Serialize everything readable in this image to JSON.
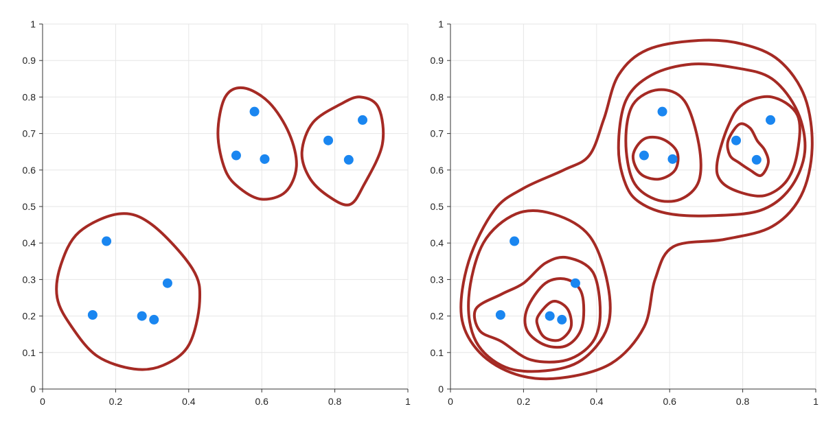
{
  "chart_data": [
    {
      "type": "scatter",
      "title": "",
      "xlabel": "",
      "ylabel": "",
      "xlim": [
        0,
        1
      ],
      "ylim": [
        0,
        1
      ],
      "grid": true,
      "xticks": [
        "0",
        "0.2",
        "0.4",
        "0.6",
        "0.8",
        "1"
      ],
      "yticks": [
        "0",
        "0.1",
        "0.2",
        "0.3",
        "0.4",
        "0.5",
        "0.6",
        "0.7",
        "0.8",
        "0.9",
        "1"
      ],
      "point_color": "#1a86f0",
      "contour_color": "#a52a24",
      "points": [
        {
          "x": 0.175,
          "y": 0.405
        },
        {
          "x": 0.137,
          "y": 0.203
        },
        {
          "x": 0.272,
          "y": 0.2
        },
        {
          "x": 0.305,
          "y": 0.19
        },
        {
          "x": 0.342,
          "y": 0.29
        },
        {
          "x": 0.58,
          "y": 0.76
        },
        {
          "x": 0.53,
          "y": 0.64
        },
        {
          "x": 0.608,
          "y": 0.63
        },
        {
          "x": 0.782,
          "y": 0.681
        },
        {
          "x": 0.838,
          "y": 0.628
        },
        {
          "x": 0.876,
          "y": 0.737
        }
      ],
      "contours": [
        [
          [
            0.1,
            0.43
          ],
          [
            0.21,
            0.48
          ],
          [
            0.3,
            0.45
          ],
          [
            0.41,
            0.33
          ],
          [
            0.43,
            0.24
          ],
          [
            0.4,
            0.12
          ],
          [
            0.33,
            0.065
          ],
          [
            0.25,
            0.055
          ],
          [
            0.15,
            0.09
          ],
          [
            0.08,
            0.17
          ],
          [
            0.04,
            0.25
          ],
          [
            0.05,
            0.34
          ]
        ],
        [
          [
            0.55,
            0.825
          ],
          [
            0.62,
            0.785
          ],
          [
            0.675,
            0.7
          ],
          [
            0.695,
            0.61
          ],
          [
            0.665,
            0.54
          ],
          [
            0.6,
            0.52
          ],
          [
            0.54,
            0.55
          ],
          [
            0.5,
            0.6
          ],
          [
            0.48,
            0.7
          ],
          [
            0.5,
            0.8
          ]
        ],
        [
          [
            0.74,
            0.73
          ],
          [
            0.815,
            0.78
          ],
          [
            0.87,
            0.8
          ],
          [
            0.92,
            0.77
          ],
          [
            0.93,
            0.67
          ],
          [
            0.88,
            0.56
          ],
          [
            0.84,
            0.505
          ],
          [
            0.78,
            0.53
          ],
          [
            0.73,
            0.58
          ],
          [
            0.71,
            0.65
          ]
        ]
      ]
    },
    {
      "type": "scatter",
      "title": "",
      "xlabel": "",
      "ylabel": "",
      "xlim": [
        0,
        1
      ],
      "ylim": [
        0,
        1
      ],
      "grid": true,
      "xticks": [
        "0",
        "0.2",
        "0.4",
        "0.6",
        "0.8",
        "1"
      ],
      "yticks": [
        "0",
        "0.1",
        "0.2",
        "0.3",
        "0.4",
        "0.5",
        "0.6",
        "0.7",
        "0.8",
        "0.9",
        "1"
      ],
      "point_color": "#1a86f0",
      "contour_color": "#a52a24",
      "points": [
        {
          "x": 0.175,
          "y": 0.405
        },
        {
          "x": 0.137,
          "y": 0.203
        },
        {
          "x": 0.272,
          "y": 0.2
        },
        {
          "x": 0.305,
          "y": 0.19
        },
        {
          "x": 0.342,
          "y": 0.29
        },
        {
          "x": 0.58,
          "y": 0.76
        },
        {
          "x": 0.53,
          "y": 0.64
        },
        {
          "x": 0.608,
          "y": 0.63
        },
        {
          "x": 0.782,
          "y": 0.681
        },
        {
          "x": 0.838,
          "y": 0.628
        },
        {
          "x": 0.876,
          "y": 0.737
        }
      ],
      "contours": [
        [
          [
            0.12,
            0.49
          ],
          [
            0.2,
            0.55
          ],
          [
            0.31,
            0.6
          ],
          [
            0.38,
            0.64
          ],
          [
            0.42,
            0.74
          ],
          [
            0.46,
            0.86
          ],
          [
            0.54,
            0.93
          ],
          [
            0.68,
            0.955
          ],
          [
            0.8,
            0.945
          ],
          [
            0.9,
            0.9
          ],
          [
            0.97,
            0.8
          ],
          [
            0.99,
            0.66
          ],
          [
            0.96,
            0.53
          ],
          [
            0.88,
            0.445
          ],
          [
            0.75,
            0.41
          ],
          [
            0.61,
            0.39
          ],
          [
            0.56,
            0.3
          ],
          [
            0.53,
            0.17
          ],
          [
            0.44,
            0.07
          ],
          [
            0.3,
            0.03
          ],
          [
            0.18,
            0.04
          ],
          [
            0.08,
            0.1
          ],
          [
            0.03,
            0.2
          ],
          [
            0.05,
            0.35
          ]
        ],
        [
          [
            0.48,
            0.56
          ],
          [
            0.46,
            0.66
          ],
          [
            0.48,
            0.79
          ],
          [
            0.55,
            0.86
          ],
          [
            0.66,
            0.89
          ],
          [
            0.78,
            0.88
          ],
          [
            0.88,
            0.85
          ],
          [
            0.95,
            0.76
          ],
          [
            0.97,
            0.65
          ],
          [
            0.93,
            0.55
          ],
          [
            0.85,
            0.49
          ],
          [
            0.72,
            0.475
          ],
          [
            0.6,
            0.48
          ],
          [
            0.52,
            0.51
          ]
        ],
        [
          [
            0.09,
            0.4
          ],
          [
            0.18,
            0.48
          ],
          [
            0.28,
            0.48
          ],
          [
            0.38,
            0.42
          ],
          [
            0.43,
            0.29
          ],
          [
            0.43,
            0.17
          ],
          [
            0.36,
            0.08
          ],
          [
            0.26,
            0.05
          ],
          [
            0.15,
            0.06
          ],
          [
            0.07,
            0.13
          ],
          [
            0.05,
            0.25
          ]
        ],
        [
          [
            0.5,
            0.57
          ],
          [
            0.48,
            0.68
          ],
          [
            0.5,
            0.78
          ],
          [
            0.57,
            0.82
          ],
          [
            0.64,
            0.79
          ],
          [
            0.68,
            0.67
          ],
          [
            0.68,
            0.57
          ],
          [
            0.63,
            0.52
          ],
          [
            0.56,
            0.52
          ]
        ],
        [
          [
            0.73,
            0.62
          ],
          [
            0.76,
            0.72
          ],
          [
            0.8,
            0.78
          ],
          [
            0.88,
            0.8
          ],
          [
            0.95,
            0.75
          ],
          [
            0.95,
            0.65
          ],
          [
            0.92,
            0.57
          ],
          [
            0.86,
            0.53
          ],
          [
            0.79,
            0.54
          ],
          [
            0.74,
            0.57
          ]
        ],
        [
          [
            0.07,
            0.22
          ],
          [
            0.14,
            0.26
          ],
          [
            0.2,
            0.29
          ],
          [
            0.26,
            0.345
          ],
          [
            0.32,
            0.36
          ],
          [
            0.39,
            0.32
          ],
          [
            0.41,
            0.21
          ],
          [
            0.39,
            0.13
          ],
          [
            0.32,
            0.08
          ],
          [
            0.22,
            0.08
          ],
          [
            0.14,
            0.13
          ],
          [
            0.08,
            0.16
          ]
        ],
        [
          [
            0.21,
            0.22
          ],
          [
            0.26,
            0.29
          ],
          [
            0.32,
            0.3
          ],
          [
            0.36,
            0.26
          ],
          [
            0.36,
            0.17
          ],
          [
            0.32,
            0.12
          ],
          [
            0.26,
            0.12
          ],
          [
            0.21,
            0.16
          ]
        ],
        [
          [
            0.24,
            0.2
          ],
          [
            0.28,
            0.24
          ],
          [
            0.32,
            0.22
          ],
          [
            0.33,
            0.17
          ],
          [
            0.3,
            0.135
          ],
          [
            0.26,
            0.14
          ],
          [
            0.24,
            0.17
          ]
        ],
        [
          [
            0.5,
            0.64
          ],
          [
            0.53,
            0.685
          ],
          [
            0.58,
            0.685
          ],
          [
            0.62,
            0.65
          ],
          [
            0.615,
            0.6
          ],
          [
            0.57,
            0.575
          ],
          [
            0.52,
            0.59
          ]
        ],
        [
          [
            0.76,
            0.68
          ],
          [
            0.79,
            0.725
          ],
          [
            0.82,
            0.715
          ],
          [
            0.84,
            0.68
          ],
          [
            0.86,
            0.655
          ],
          [
            0.87,
            0.62
          ],
          [
            0.85,
            0.585
          ],
          [
            0.82,
            0.6
          ],
          [
            0.79,
            0.62
          ],
          [
            0.765,
            0.64
          ]
        ]
      ]
    }
  ]
}
